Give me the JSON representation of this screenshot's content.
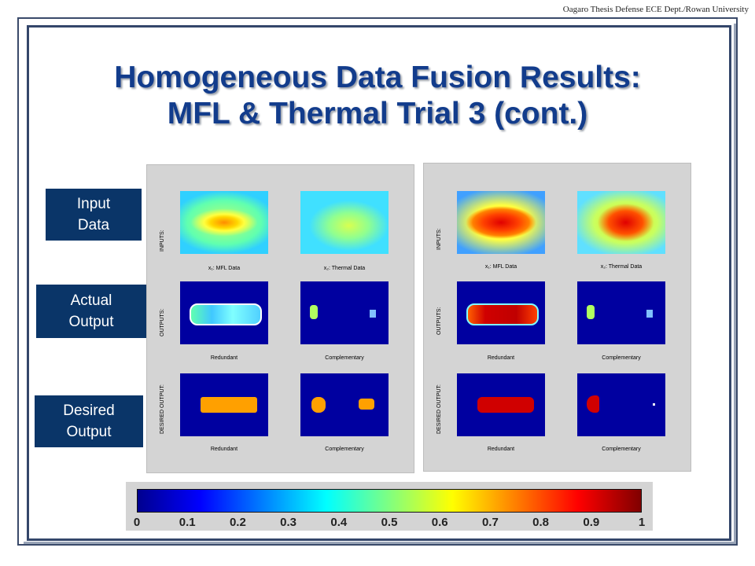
{
  "header": {
    "attribution": "Oagaro Thesis Defense ECE Dept./Rowan University"
  },
  "title": {
    "line1": "Homogeneous Data Fusion Results:",
    "line2": "MFL & Thermal Trial 3 (cont.)"
  },
  "row_labels": [
    "Input\nData",
    "Actual\nOutput",
    "Desired\nOutput"
  ],
  "panel_text": {
    "inputs": "INPUTS:",
    "outputs": "OUTPUTS:",
    "desired": "DESIRED OUTPUT:",
    "x1": "x₁: MFL Data",
    "x2": "x₂: Thermal Data",
    "redundant": "Redundant",
    "complementary": "Complementary"
  },
  "colorbar": {
    "colormap": "jet",
    "min": 0,
    "max": 1,
    "ticks": [
      "0",
      "0.1",
      "0.2",
      "0.3",
      "0.4",
      "0.5",
      "0.6",
      "0.7",
      "0.8",
      "0.9",
      "1"
    ]
  }
}
